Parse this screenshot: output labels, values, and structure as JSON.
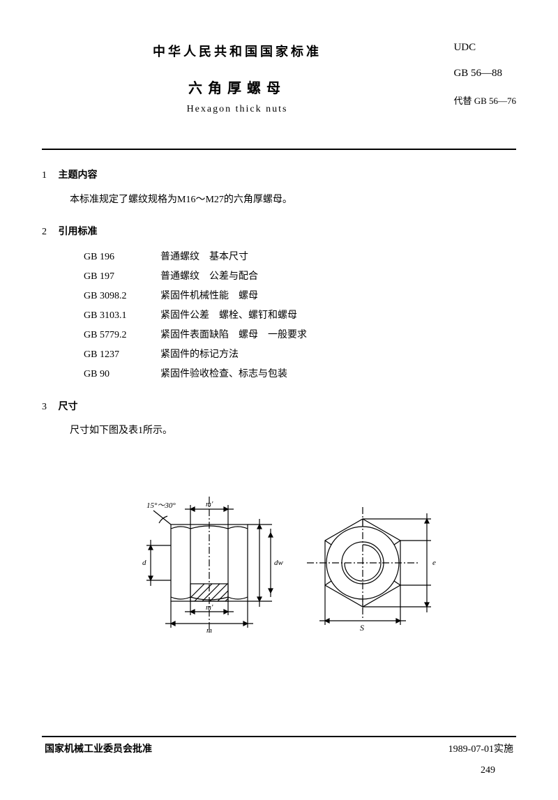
{
  "header": {
    "national_title": "中华人民共和国国家标准",
    "main_title": "六角厚螺母",
    "english_title": "Hexagon thick nuts",
    "udc_label": "UDC",
    "gb_code": "GB 56—88",
    "replaces": "代替 GB 56—76"
  },
  "sections": {
    "s1": {
      "num": "1",
      "title": "主题内容",
      "body": "本标准规定了螺纹规格为M16～M27的六角厚螺母。"
    },
    "s2": {
      "num": "2",
      "title": "引用标准"
    },
    "s3": {
      "num": "3",
      "title": "尺寸",
      "body": "尺寸如下图及表1所示。"
    }
  },
  "references": [
    {
      "code": "GB 196",
      "desc": "普通螺纹　基本尺寸"
    },
    {
      "code": "GB 197",
      "desc": "普通螺纹　公差与配合"
    },
    {
      "code": "GB 3098.2",
      "desc": "紧固件机械性能　螺母"
    },
    {
      "code": "GB 3103.1",
      "desc": "紧固件公差　螺栓、螺钉和螺母"
    },
    {
      "code": "GB 5779.2",
      "desc": "紧固件表面缺陷　螺母　一般要求"
    },
    {
      "code": "GB 1237",
      "desc": "紧固件的标记方法"
    },
    {
      "code": "GB 90",
      "desc": "紧固件验收检查、标志与包装"
    }
  ],
  "diagram": {
    "stroke": "#000000",
    "stroke_width": 1.2,
    "hatch_spacing": 6,
    "chamfer_label": "15°～30°",
    "dim_m_top": "m'",
    "dim_m_bottom": "m'",
    "dim_m": "m",
    "dim_d": "d",
    "dim_dw": "dw",
    "dim_s": "S",
    "dim_e": "e"
  },
  "footer": {
    "approval": "国家机械工业委员会批准",
    "effective": "1989-07-01实施",
    "page": "249"
  },
  "colors": {
    "text": "#000000",
    "bg": "#ffffff"
  }
}
